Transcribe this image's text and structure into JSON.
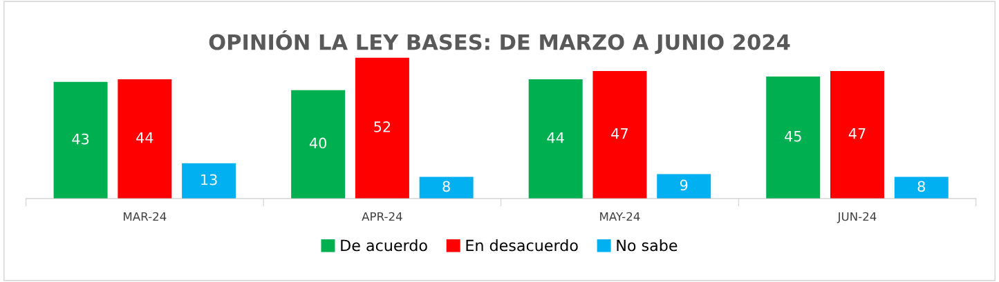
{
  "chart_data": {
    "type": "bar",
    "title": "OPINIÓN LA LEY BASES: DE MARZO A JUNIO 2024",
    "categories": [
      "MAR-24",
      "APR-24",
      "MAY-24",
      "JUN-24"
    ],
    "series": [
      {
        "name": "De acuerdo",
        "color": "#00b050",
        "values": [
          43,
          40,
          44,
          45
        ]
      },
      {
        "name": "En desacuerdo",
        "color": "#ff0000",
        "values": [
          44,
          52,
          47,
          47
        ]
      },
      {
        "name": "No sabe",
        "color": "#00b0f0",
        "values": [
          13,
          8,
          9,
          8
        ]
      }
    ],
    "data_labels": true,
    "legend": "bottom",
    "grid": false
  }
}
